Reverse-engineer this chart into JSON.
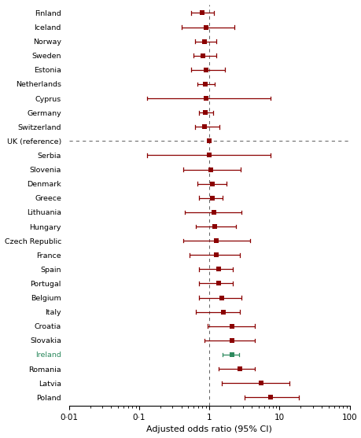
{
  "countries": [
    "Finland",
    "Iceland",
    "Norway",
    "Sweden",
    "Estonia",
    "Netherlands",
    "Cyprus",
    "Germany",
    "Switzerland",
    "UK (reference)",
    "Serbia",
    "Slovenia",
    "Denmark",
    "Greece",
    "Lithuania",
    "Hungary",
    "Czech Republic",
    "France",
    "Spain",
    "Portugal",
    "Belgium",
    "Italy",
    "Croatia",
    "Slovakia",
    "Ireland",
    "Romania",
    "Latvia",
    "Poland"
  ],
  "or": [
    0.8,
    0.9,
    0.85,
    0.82,
    0.9,
    0.88,
    0.9,
    0.88,
    0.85,
    1.0,
    1.0,
    1.05,
    1.1,
    1.1,
    1.15,
    1.2,
    1.25,
    1.25,
    1.35,
    1.35,
    1.5,
    1.6,
    2.1,
    2.1,
    2.1,
    2.7,
    5.5,
    7.5
  ],
  "ci_low": [
    0.55,
    0.4,
    0.62,
    0.6,
    0.55,
    0.68,
    0.13,
    0.72,
    0.62,
    1.0,
    0.13,
    0.42,
    0.68,
    0.72,
    0.45,
    0.65,
    0.42,
    0.52,
    0.72,
    0.72,
    0.72,
    0.65,
    0.95,
    0.85,
    1.55,
    1.35,
    1.5,
    3.2
  ],
  "ci_high": [
    1.15,
    2.3,
    1.25,
    1.25,
    1.65,
    1.18,
    7.5,
    1.12,
    1.38,
    1.0,
    7.5,
    2.8,
    1.75,
    1.55,
    2.9,
    2.4,
    3.8,
    2.7,
    2.15,
    2.15,
    2.9,
    2.7,
    4.4,
    4.4,
    2.65,
    4.4,
    14.0,
    19.0
  ],
  "is_reference": [
    false,
    false,
    false,
    false,
    false,
    false,
    false,
    false,
    false,
    true,
    false,
    false,
    false,
    false,
    false,
    false,
    false,
    false,
    false,
    false,
    false,
    false,
    false,
    false,
    false,
    false,
    false,
    false
  ],
  "is_ireland": [
    false,
    false,
    false,
    false,
    false,
    false,
    false,
    false,
    false,
    false,
    false,
    false,
    false,
    false,
    false,
    false,
    false,
    false,
    false,
    false,
    false,
    false,
    false,
    false,
    true,
    false,
    false,
    false
  ],
  "marker_color": "#8B0000",
  "ireland_color": "#2d8a5e",
  "ref_line_color": "#666666",
  "xlabel": "Adjusted odds ratio (95% CI)",
  "x_ticks": [
    0.01,
    0.1,
    1,
    10,
    100
  ],
  "x_tick_labels": [
    "0·01",
    "0·1",
    "1",
    "10",
    "100"
  ]
}
